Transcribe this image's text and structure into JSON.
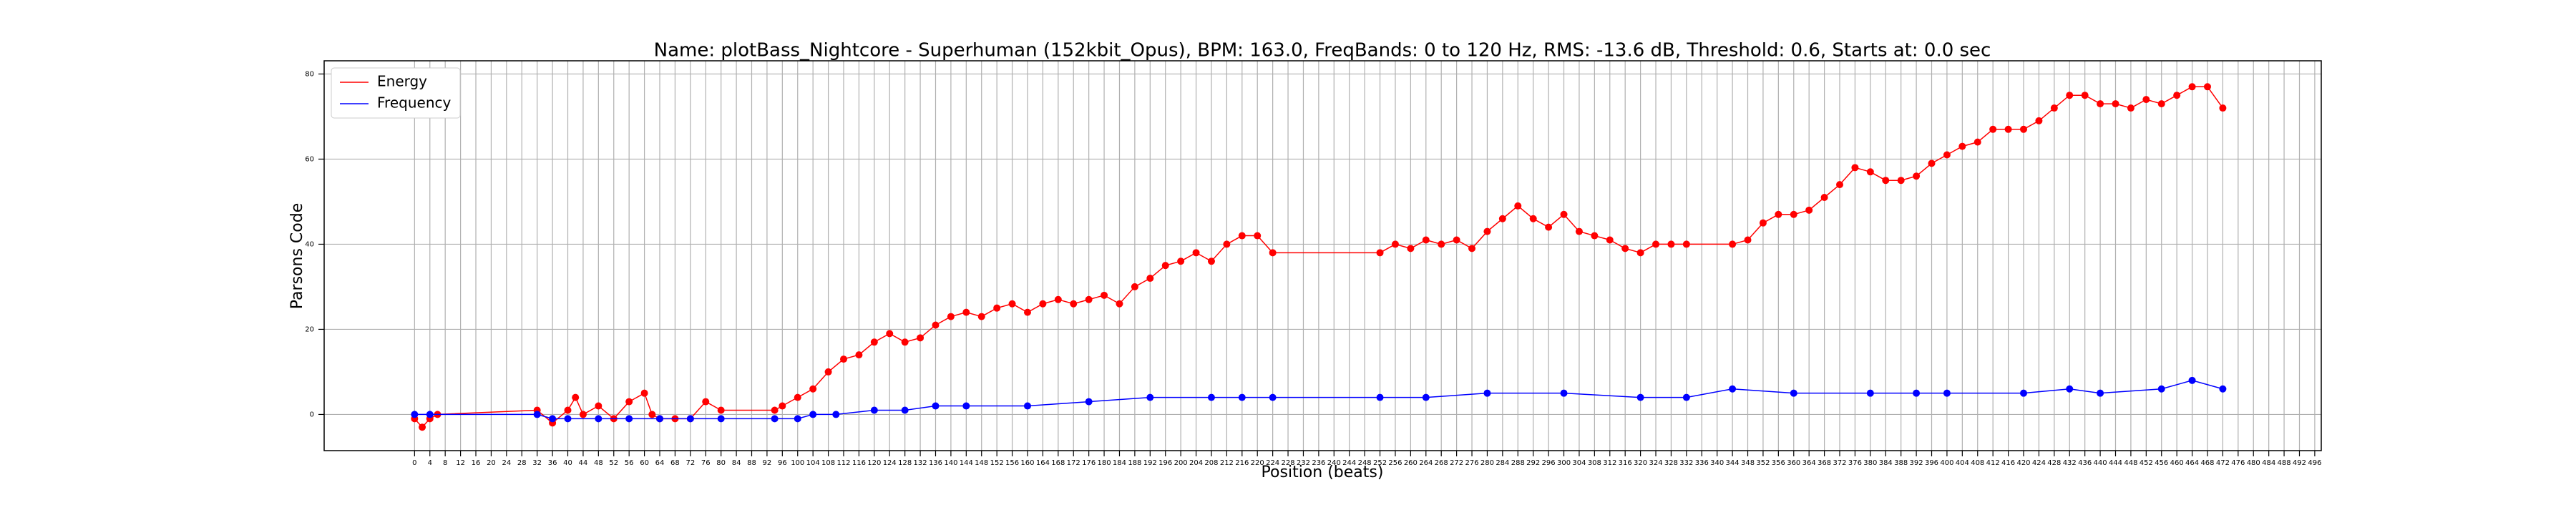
{
  "chart_data": {
    "type": "line",
    "title": "Name: plotBass_Nightcore - Superhuman (152kbit_Opus), BPM: 163.0, FreqBands: 0 to 120 Hz, RMS: -13.6 dB, Threshold: 0.6, Starts at: 0.0 sec",
    "xlabel": "Position (beats)",
    "ylabel": "Parsons Code",
    "xlim": [
      -23.6,
      497.7
    ],
    "ylim": [
      -8.5,
      83.1
    ],
    "xticks": [
      0,
      4,
      8,
      12,
      16,
      20,
      24,
      28,
      32,
      36,
      40,
      44,
      48,
      52,
      56,
      60,
      64,
      68,
      72,
      76,
      80,
      84,
      88,
      92,
      96,
      100,
      104,
      108,
      112,
      116,
      120,
      124,
      128,
      132,
      136,
      140,
      144,
      148,
      152,
      156,
      160,
      164,
      168,
      172,
      176,
      180,
      184,
      188,
      192,
      196,
      200,
      204,
      208,
      212,
      216,
      220,
      224,
      228,
      232,
      236,
      240,
      244,
      248,
      252,
      256,
      260,
      264,
      268,
      272,
      276,
      280,
      284,
      288,
      292,
      296,
      300,
      304,
      308,
      312,
      316,
      320,
      324,
      328,
      332,
      336,
      340,
      344,
      348,
      352,
      356,
      360,
      364,
      368,
      372,
      376,
      380,
      384,
      388,
      392,
      396,
      400,
      404,
      408,
      412,
      416,
      420,
      424,
      428,
      432,
      436,
      440,
      444,
      448,
      452,
      456,
      460,
      464,
      468,
      472,
      476,
      480,
      484,
      488,
      492,
      496
    ],
    "yticks": [
      0,
      20,
      40,
      60,
      80
    ],
    "grid": true,
    "legend": "upper left",
    "series": [
      {
        "name": "Energy",
        "color": "#ff0000",
        "x": [
          0,
          2,
          4,
          6,
          32,
          36,
          40,
          42,
          44,
          48,
          52,
          56,
          60,
          62,
          64,
          68,
          72,
          76,
          80,
          94,
          96,
          100,
          104,
          108,
          112,
          116,
          120,
          124,
          128,
          132,
          136,
          140,
          144,
          148,
          152,
          156,
          160,
          164,
          168,
          172,
          176,
          180,
          184,
          188,
          192,
          196,
          200,
          204,
          208,
          212,
          216,
          220,
          224,
          252,
          256,
          260,
          264,
          268,
          272,
          276,
          280,
          284,
          288,
          292,
          296,
          300,
          304,
          308,
          312,
          316,
          320,
          324,
          328,
          332,
          344,
          348,
          352,
          356,
          360,
          364,
          368,
          372,
          376,
          380,
          384,
          388,
          392,
          396,
          400,
          404,
          408,
          412,
          416,
          420,
          424,
          428,
          432,
          436,
          440,
          444,
          448,
          452,
          456,
          460,
          464,
          468,
          472
        ],
        "values": [
          -1,
          -3,
          -1,
          0,
          1,
          -2,
          1,
          4,
          0,
          2,
          -1,
          3,
          5,
          0,
          -1,
          -1,
          -1,
          3,
          1,
          1,
          2,
          4,
          6,
          10,
          13,
          14,
          17,
          19,
          17,
          18,
          21,
          23,
          24,
          23,
          25,
          26,
          24,
          26,
          27,
          26,
          27,
          28,
          26,
          30,
          32,
          35,
          36,
          38,
          36,
          40,
          42,
          42,
          38,
          38,
          40,
          39,
          41,
          40,
          41,
          39,
          43,
          46,
          49,
          46,
          44,
          47,
          43,
          42,
          41,
          39,
          38,
          40,
          40,
          40,
          40,
          41,
          45,
          47,
          47,
          48,
          51,
          54,
          58,
          57,
          55,
          55,
          56,
          59,
          61,
          63,
          64,
          67,
          67,
          67,
          69,
          72,
          75,
          75,
          73,
          73,
          72,
          74,
          73,
          75,
          77,
          77,
          72
        ]
      },
      {
        "name": "Frequency",
        "color": "#0000ff",
        "x": [
          0,
          4,
          32,
          36,
          40,
          48,
          56,
          64,
          72,
          80,
          94,
          100,
          104,
          110,
          120,
          128,
          136,
          144,
          160,
          176,
          192,
          208,
          216,
          224,
          252,
          264,
          280,
          300,
          320,
          332,
          344,
          360,
          380,
          392,
          400,
          420,
          432,
          440,
          456,
          464,
          472
        ],
        "values": [
          0,
          0,
          0,
          -1,
          -1,
          -1,
          -1,
          -1,
          -1,
          -1,
          -1,
          -1,
          0,
          0,
          1,
          1,
          2,
          2,
          2,
          3,
          4,
          4,
          4,
          4,
          4,
          4,
          5,
          5,
          4,
          4,
          6,
          5,
          5,
          5,
          5,
          5,
          6,
          5,
          6,
          8,
          6
        ]
      }
    ]
  }
}
